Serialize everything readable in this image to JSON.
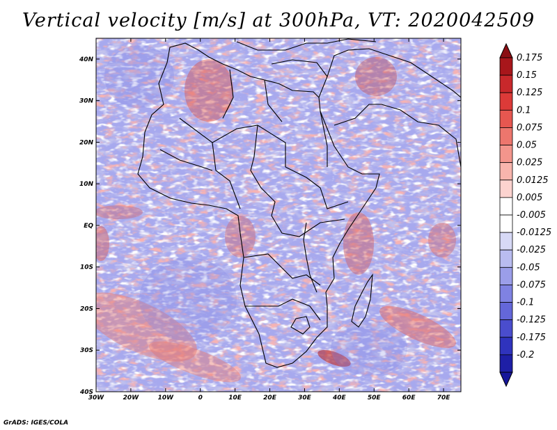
{
  "title": "Vertical velocity [m/s] at 300hPa, VT: 2020042509",
  "footer": "GrADS: IGES/COLA",
  "map": {
    "lon_range": [
      -30,
      75
    ],
    "lat_range": [
      -40,
      45
    ],
    "lon_ticks": [
      {
        "value": -30,
        "label": "30W"
      },
      {
        "value": -20,
        "label": "20W"
      },
      {
        "value": -10,
        "label": "10W"
      },
      {
        "value": 0,
        "label": "0"
      },
      {
        "value": 10,
        "label": "10E"
      },
      {
        "value": 20,
        "label": "20E"
      },
      {
        "value": 30,
        "label": "30E"
      },
      {
        "value": 40,
        "label": "40E"
      },
      {
        "value": 50,
        "label": "50E"
      },
      {
        "value": 60,
        "label": "60E"
      },
      {
        "value": 70,
        "label": "70E"
      }
    ],
    "lat_ticks": [
      {
        "value": 40,
        "label": "40N"
      },
      {
        "value": 30,
        "label": "30N"
      },
      {
        "value": 20,
        "label": "20N"
      },
      {
        "value": 10,
        "label": "10N"
      },
      {
        "value": 0,
        "label": "EQ"
      },
      {
        "value": -10,
        "label": "10S"
      },
      {
        "value": -20,
        "label": "20S"
      },
      {
        "value": -30,
        "label": "30S"
      },
      {
        "value": -40,
        "label": "40S"
      }
    ]
  },
  "colorbar": {
    "levels": [
      {
        "label": "0.175",
        "color": "#a8161b"
      },
      {
        "label": "0.15",
        "color": "#c8282b"
      },
      {
        "label": "0.125",
        "color": "#dc3a38"
      },
      {
        "label": "0.1",
        "color": "#e65750"
      },
      {
        "label": "0.075",
        "color": "#ed766d"
      },
      {
        "label": "0.05",
        "color": "#f3958c"
      },
      {
        "label": "0.025",
        "color": "#f8b5ad"
      },
      {
        "label": "0.0125",
        "color": "#fcd3cf"
      },
      {
        "label": "0.005",
        "color": "#ffffff"
      },
      {
        "label": "-0.005",
        "color": "#ffffff"
      },
      {
        "label": "-0.0125",
        "color": "#d7d9f6"
      },
      {
        "label": "-0.025",
        "color": "#b9bcf0"
      },
      {
        "label": "-0.05",
        "color": "#9b9ee9"
      },
      {
        "label": "-0.075",
        "color": "#7f82e2"
      },
      {
        "label": "-0.1",
        "color": "#6467d9"
      },
      {
        "label": "-0.125",
        "color": "#4a4dcd"
      },
      {
        "label": "-0.175",
        "color": "#2f33bd"
      },
      {
        "label": "-0.2",
        "color": "#1e1fa6"
      }
    ],
    "top_color": "#8b0e13",
    "bottom_color": "#16169a"
  }
}
